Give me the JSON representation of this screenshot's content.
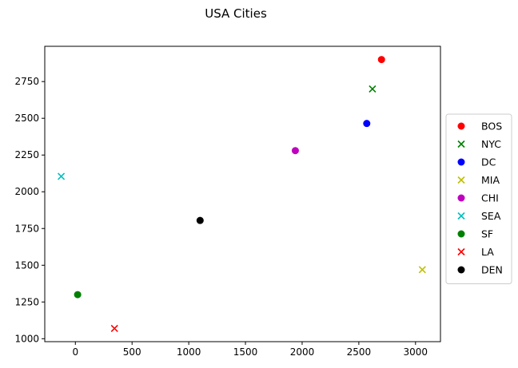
{
  "chart_data": {
    "type": "scatter",
    "title": "USA Cities",
    "xlabel": "",
    "ylabel": "",
    "xlim": [
      -270,
      3220
    ],
    "ylim": [
      980,
      2990
    ],
    "grid": false,
    "legend_position": "center-right-outside",
    "x_ticks": [
      {
        "value": 0,
        "label": "0"
      },
      {
        "value": 500,
        "label": "500"
      },
      {
        "value": 1000,
        "label": "1000"
      },
      {
        "value": 1500,
        "label": "1500"
      },
      {
        "value": 2000,
        "label": "2000"
      },
      {
        "value": 2500,
        "label": "2500"
      },
      {
        "value": 3000,
        "label": "3000"
      }
    ],
    "y_ticks": [
      {
        "value": 1000,
        "label": "1000"
      },
      {
        "value": 1250,
        "label": "1250"
      },
      {
        "value": 1500,
        "label": "1500"
      },
      {
        "value": 1750,
        "label": "1750"
      },
      {
        "value": 2000,
        "label": "2000"
      },
      {
        "value": 2250,
        "label": "2250"
      },
      {
        "value": 2500,
        "label": "2500"
      },
      {
        "value": 2750,
        "label": "2750"
      }
    ],
    "series": [
      {
        "name": "BOS",
        "x": 2700,
        "y": 2900,
        "marker": "o",
        "color": "#ff0000"
      },
      {
        "name": "NYC",
        "x": 2620,
        "y": 2700,
        "marker": "x",
        "color": "#008000"
      },
      {
        "name": "DC",
        "x": 2570,
        "y": 2465,
        "marker": "o",
        "color": "#0000ff"
      },
      {
        "name": "MIA",
        "x": 3060,
        "y": 1470,
        "marker": "x",
        "color": "#bfbf00"
      },
      {
        "name": "CHI",
        "x": 1940,
        "y": 2280,
        "marker": "o",
        "color": "#bf00bf"
      },
      {
        "name": "SEA",
        "x": -125,
        "y": 2105,
        "marker": "x",
        "color": "#00bfbf"
      },
      {
        "name": "SF",
        "x": 20,
        "y": 1300,
        "marker": "o",
        "color": "#008000"
      },
      {
        "name": "LA",
        "x": 345,
        "y": 1070,
        "marker": "x",
        "color": "#ff0000"
      },
      {
        "name": "DEN",
        "x": 1100,
        "y": 1805,
        "marker": "o",
        "color": "#000000"
      }
    ]
  }
}
